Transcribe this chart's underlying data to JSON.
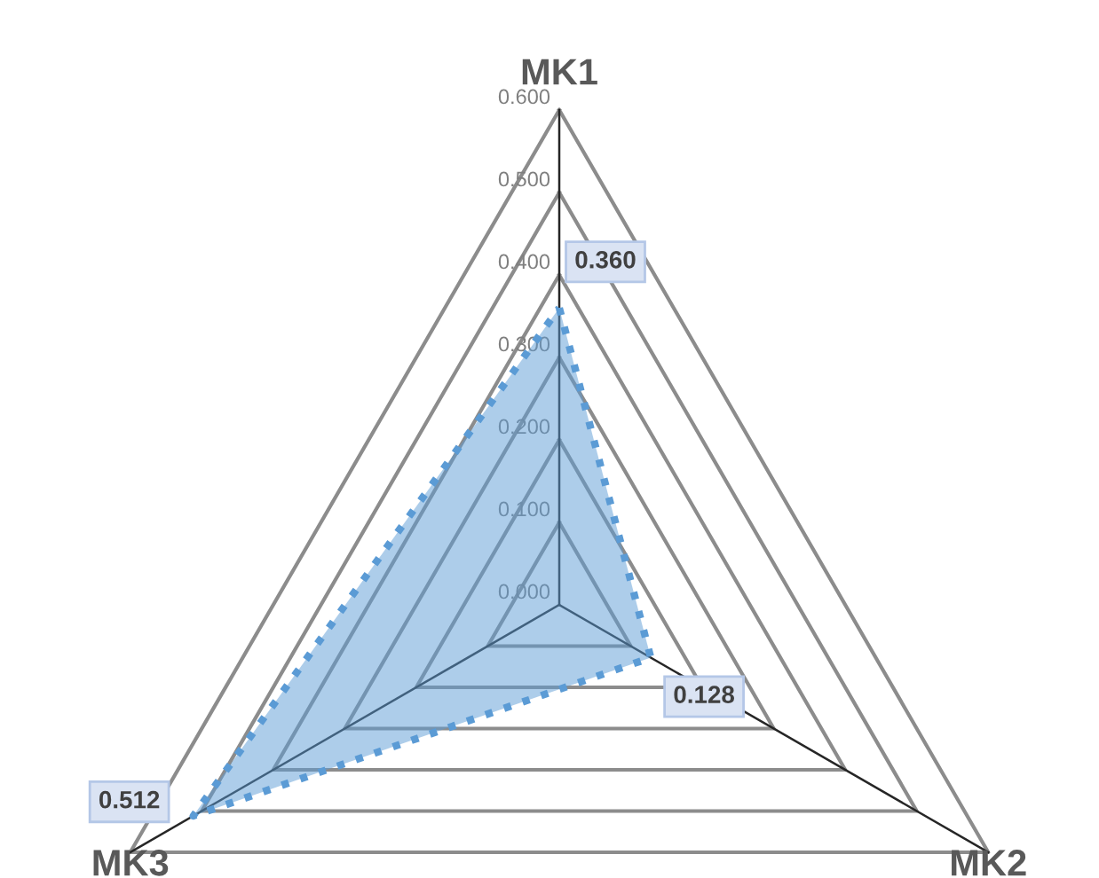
{
  "chart_data": {
    "type": "radar",
    "categories": [
      "MK1",
      "MK2",
      "MK3"
    ],
    "series": [
      {
        "color": "#5b9bd5",
        "values": [
          0.36,
          0.128,
          0.512
        ],
        "value_labels": [
          "0.360",
          "0.128",
          "0.512"
        ]
      }
    ],
    "ylim": [
      0,
      0.6
    ],
    "yticks": [
      {
        "value": 0,
        "label": "0.000"
      },
      {
        "value": 0.1,
        "label": "0.100"
      },
      {
        "value": 0.2,
        "label": "0.200"
      },
      {
        "value": 0.3,
        "label": "0.300"
      },
      {
        "value": 0.4,
        "label": "0.400"
      },
      {
        "value": 0.5,
        "label": "0.500"
      },
      {
        "value": 0.6,
        "label": "0.600"
      }
    ],
    "line_style": "dotted",
    "marker": "none",
    "grid": true,
    "legend": false
  }
}
